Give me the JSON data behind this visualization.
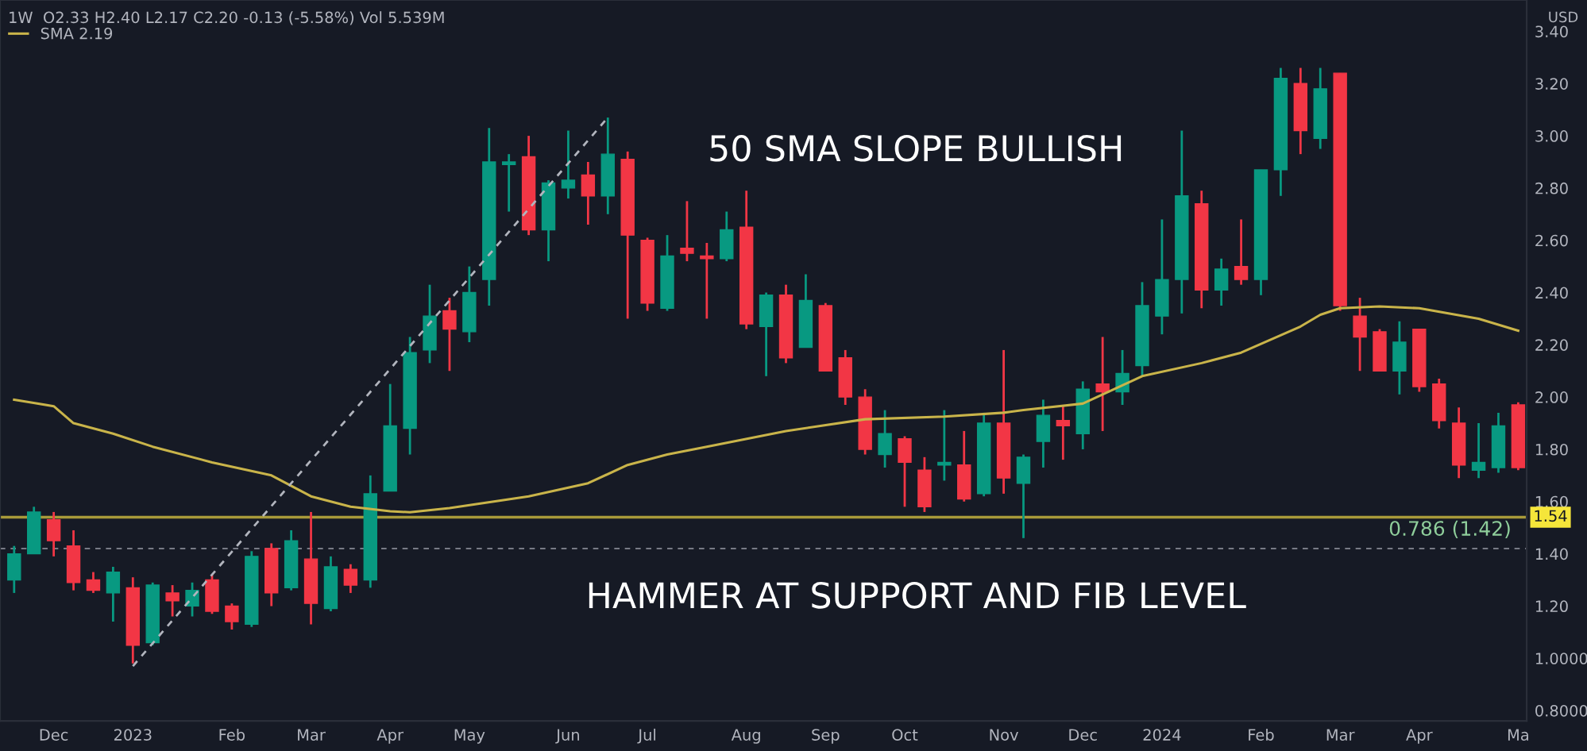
{
  "chart_data": {
    "type": "candlestick",
    "title": "1W  O2.33 H2.40 L2.17 C2.20 -0.13 (-5.58%) Vol 5.539M",
    "ylabel": "USD",
    "x": [
      "2022-11-21",
      "2022-11-28",
      "2022-12-05",
      "2022-12-12",
      "2022-12-19",
      "2022-12-26",
      "2023-01-02",
      "2023-01-09",
      "2023-01-16",
      "2023-01-23",
      "2023-01-30",
      "2023-02-06",
      "2023-02-13",
      "2023-02-20",
      "2023-02-27",
      "2023-03-06",
      "2023-03-13",
      "2023-03-20",
      "2023-03-27",
      "2023-04-03",
      "2023-04-10",
      "2023-04-17",
      "2023-04-24",
      "2023-05-01",
      "2023-05-08",
      "2023-05-15",
      "2023-05-22",
      "2023-05-29",
      "2023-06-05",
      "2023-06-12",
      "2023-06-19",
      "2023-06-26",
      "2023-07-03",
      "2023-07-10",
      "2023-07-17",
      "2023-07-24",
      "2023-07-31",
      "2023-08-07",
      "2023-08-14",
      "2023-08-21",
      "2023-08-28",
      "2023-09-04",
      "2023-09-11",
      "2023-09-18",
      "2023-09-25",
      "2023-10-02",
      "2023-10-09",
      "2023-10-16",
      "2023-10-23",
      "2023-10-30",
      "2023-11-06",
      "2023-11-13",
      "2023-11-20",
      "2023-11-27",
      "2023-12-04",
      "2023-12-11",
      "2023-12-18",
      "2023-12-25",
      "2024-01-01",
      "2024-01-08",
      "2024-01-15",
      "2024-01-22",
      "2024-01-29",
      "2024-02-05",
      "2024-02-12",
      "2024-02-19",
      "2024-02-26",
      "2024-03-04",
      "2024-03-11",
      "2024-03-18",
      "2024-03-25",
      "2024-04-01",
      "2024-04-08",
      "2024-04-15",
      "2024-04-22",
      "2024-04-29",
      "2024-05-06"
    ],
    "ohlc": [
      [
        1.3,
        1.43,
        1.25,
        1.4
      ],
      [
        1.4,
        1.58,
        1.4,
        1.56
      ],
      [
        1.53,
        1.56,
        1.39,
        1.45
      ],
      [
        1.43,
        1.49,
        1.26,
        1.29
      ],
      [
        1.3,
        1.33,
        1.25,
        1.26
      ],
      [
        1.25,
        1.35,
        1.14,
        1.33
      ],
      [
        1.27,
        1.31,
        0.98,
        1.05
      ],
      [
        1.06,
        1.29,
        1.05,
        1.28
      ],
      [
        1.25,
        1.28,
        1.16,
        1.22
      ],
      [
        1.2,
        1.29,
        1.16,
        1.26
      ],
      [
        1.3,
        1.32,
        1.17,
        1.18
      ],
      [
        1.2,
        1.21,
        1.11,
        1.14
      ],
      [
        1.13,
        1.41,
        1.12,
        1.39
      ],
      [
        1.42,
        1.44,
        1.2,
        1.25
      ],
      [
        1.27,
        1.49,
        1.26,
        1.45
      ],
      [
        1.38,
        1.56,
        1.13,
        1.21
      ],
      [
        1.19,
        1.39,
        1.18,
        1.35
      ],
      [
        1.34,
        1.36,
        1.25,
        1.28
      ],
      [
        1.3,
        1.7,
        1.27,
        1.63
      ],
      [
        1.64,
        2.05,
        1.64,
        1.89
      ],
      [
        1.88,
        2.23,
        1.78,
        2.17
      ],
      [
        2.18,
        2.43,
        2.13,
        2.31
      ],
      [
        2.33,
        2.38,
        2.1,
        2.26
      ],
      [
        2.25,
        2.5,
        2.21,
        2.4
      ],
      [
        2.45,
        3.03,
        2.35,
        2.9
      ],
      [
        2.89,
        2.93,
        2.71,
        2.9
      ],
      [
        2.92,
        3.0,
        2.62,
        2.64
      ],
      [
        2.64,
        2.83,
        2.52,
        2.82
      ],
      [
        2.8,
        3.02,
        2.76,
        2.83
      ],
      [
        2.85,
        2.9,
        2.66,
        2.77
      ],
      [
        2.77,
        3.07,
        2.7,
        2.93
      ],
      [
        2.91,
        2.94,
        2.3,
        2.62
      ],
      [
        2.6,
        2.61,
        2.33,
        2.36
      ],
      [
        2.34,
        2.62,
        2.33,
        2.54
      ],
      [
        2.57,
        2.75,
        2.52,
        2.55
      ],
      [
        2.54,
        2.59,
        2.3,
        2.53
      ],
      [
        2.53,
        2.71,
        2.52,
        2.64
      ],
      [
        2.65,
        2.79,
        2.26,
        2.28
      ],
      [
        2.27,
        2.4,
        2.08,
        2.39
      ],
      [
        2.39,
        2.43,
        2.13,
        2.15
      ],
      [
        2.19,
        2.47,
        2.19,
        2.37
      ],
      [
        2.35,
        2.36,
        2.1,
        2.1
      ],
      [
        2.15,
        2.18,
        1.97,
        2.0
      ],
      [
        2.0,
        2.03,
        1.78,
        1.8
      ],
      [
        1.78,
        1.95,
        1.73,
        1.86
      ],
      [
        1.84,
        1.85,
        1.58,
        1.75
      ],
      [
        1.72,
        1.77,
        1.56,
        1.58
      ],
      [
        1.74,
        1.95,
        1.68,
        1.75
      ],
      [
        1.74,
        1.87,
        1.6,
        1.61
      ],
      [
        1.63,
        1.94,
        1.62,
        1.9
      ],
      [
        1.9,
        2.18,
        1.63,
        1.69
      ],
      [
        1.67,
        1.78,
        1.46,
        1.77
      ],
      [
        1.83,
        1.99,
        1.73,
        1.93
      ],
      [
        1.91,
        1.97,
        1.76,
        1.89
      ],
      [
        1.86,
        2.06,
        1.8,
        2.03
      ],
      [
        2.05,
        2.23,
        1.87,
        2.02
      ],
      [
        2.02,
        2.18,
        1.97,
        2.09
      ],
      [
        2.12,
        2.44,
        2.08,
        2.35
      ],
      [
        2.31,
        2.68,
        2.24,
        2.45
      ],
      [
        2.45,
        3.02,
        2.32,
        2.77
      ],
      [
        2.74,
        2.79,
        2.34,
        2.41
      ],
      [
        2.41,
        2.53,
        2.35,
        2.49
      ],
      [
        2.5,
        2.68,
        2.43,
        2.45
      ],
      [
        2.45,
        2.87,
        2.39,
        2.87
      ],
      [
        2.87,
        3.26,
        2.77,
        3.22
      ],
      [
        3.2,
        3.26,
        2.93,
        3.02
      ],
      [
        2.99,
        3.26,
        2.95,
        3.18
      ],
      [
        3.24,
        3.24,
        2.33,
        2.35
      ],
      [
        2.31,
        2.38,
        2.1,
        2.23
      ],
      [
        2.25,
        2.26,
        2.1,
        2.1
      ],
      [
        2.1,
        2.29,
        2.01,
        2.21
      ],
      [
        2.26,
        2.26,
        2.02,
        2.04
      ],
      [
        2.05,
        2.07,
        1.88,
        1.91
      ],
      [
        1.9,
        1.96,
        1.69,
        1.74
      ],
      [
        1.72,
        1.9,
        1.69,
        1.75
      ],
      [
        1.73,
        1.94,
        1.71,
        1.89
      ],
      [
        1.97,
        1.98,
        1.72,
        1.73
      ]
    ],
    "colors": [
      "#089981",
      "#089981",
      "#f23645",
      "#f23645",
      "#f23645",
      "#089981",
      "#f23645",
      "#089981",
      "#f23645",
      "#089981",
      "#f23645",
      "#f23645",
      "#089981",
      "#f23645",
      "#089981",
      "#f23645",
      "#089981",
      "#f23645",
      "#089981",
      "#089981",
      "#089981",
      "#089981",
      "#f23645",
      "#089981",
      "#089981",
      "#089981",
      "#f23645",
      "#089981",
      "#089981",
      "#f23645",
      "#089981",
      "#f23645",
      "#f23645",
      "#089981",
      "#f23645",
      "#f23645",
      "#089981",
      "#f23645",
      "#089981",
      "#f23645",
      "#089981",
      "#f23645",
      "#f23645",
      "#f23645",
      "#089981",
      "#f23645",
      "#f23645",
      "#089981",
      "#f23645",
      "#089981",
      "#f23645",
      "#089981",
      "#089981",
      "#f23645",
      "#089981",
      "#f23645",
      "#089981",
      "#089981",
      "#089981",
      "#089981",
      "#f23645",
      "#089981",
      "#f23645",
      "#089981",
      "#089981",
      "#f23645",
      "#089981",
      "#f23645",
      "#f23645",
      "#f23645",
      "#089981",
      "#f23645",
      "#f23645",
      "#f23645",
      "#089981",
      "#089981",
      "#f23645"
    ],
    "series": [
      {
        "type": "line",
        "name": "SMA 2.19",
        "color": "#c9b44a",
        "x": [
          "2022-11-21",
          "2022-12-05",
          "2022-12-12",
          "2022-12-26",
          "2023-01-09",
          "2023-01-30",
          "2023-02-20",
          "2023-03-06",
          "2023-03-20",
          "2023-04-03",
          "2023-04-10",
          "2023-04-24",
          "2023-05-22",
          "2023-06-12",
          "2023-06-26",
          "2023-07-10",
          "2023-07-24",
          "2023-08-21",
          "2023-09-18",
          "2023-10-16",
          "2023-11-06",
          "2023-11-13",
          "2023-12-04",
          "2023-12-25",
          "2024-01-15",
          "2024-01-29",
          "2024-02-19",
          "2024-02-26",
          "2024-03-04",
          "2024-03-18",
          "2024-04-01",
          "2024-04-22",
          "2024-05-06"
        ],
        "values": [
          1.99,
          1.965,
          1.9,
          1.86,
          1.81,
          1.75,
          1.7,
          1.62,
          1.58,
          1.563,
          1.559,
          1.575,
          1.62,
          1.67,
          1.74,
          1.78,
          1.81,
          1.87,
          1.915,
          1.925,
          1.94,
          1.95,
          1.975,
          2.08,
          2.13,
          2.17,
          2.27,
          2.315,
          2.34,
          2.347,
          2.34,
          2.3,
          2.254
        ]
      },
      {
        "type": "line",
        "color": "#b2b5be",
        "line_style": "dashed",
        "x": [
          "2023-01-02",
          "2023-06-19"
        ],
        "values": [
          0.97,
          3.07
        ]
      }
    ],
    "ref_lines": [
      {
        "axis": "y",
        "value": 1.54,
        "label": "1.54",
        "color": "#a89a3a",
        "line_style": "solid"
      },
      {
        "axis": "y",
        "value": 1.42,
        "label": "0.786 (1.42)",
        "color": "#787b86",
        "line_style": "dashed"
      }
    ],
    "annotations": [
      "50 SMA SLOPE BULLISH",
      "HAMMER AT SUPPORT AND FIB LEVEL"
    ],
    "xlim": [
      "2022-11-16",
      "2024-05-09"
    ],
    "xticks": [
      {
        "value": "2022-12-05",
        "label": "Dec"
      },
      {
        "value": "2023-01-02",
        "label": "2023"
      },
      {
        "value": "2023-02-06",
        "label": "Feb"
      },
      {
        "value": "2023-03-06",
        "label": "Mar"
      },
      {
        "value": "2023-04-03",
        "label": "Apr"
      },
      {
        "value": "2023-05-01",
        "label": "May"
      },
      {
        "value": "2023-06-05",
        "label": "Jun"
      },
      {
        "value": "2023-07-03",
        "label": "Jul"
      },
      {
        "value": "2023-08-07",
        "label": "Aug"
      },
      {
        "value": "2023-09-04",
        "label": "Sep"
      },
      {
        "value": "2023-10-02",
        "label": "Oct"
      },
      {
        "value": "2023-11-06",
        "label": "Nov"
      },
      {
        "value": "2023-12-04",
        "label": "Dec"
      },
      {
        "value": "2024-01-01",
        "label": "2024"
      },
      {
        "value": "2024-02-05",
        "label": "Feb"
      },
      {
        "value": "2024-03-04",
        "label": "Mar"
      },
      {
        "value": "2024-04-01",
        "label": "Apr"
      },
      {
        "value": "2024-05-06",
        "label": "Ma"
      }
    ],
    "ylim": [
      0.76,
      3.52
    ],
    "yticks": [
      {
        "value": 3.4,
        "label": "3.40"
      },
      {
        "value": 3.2,
        "label": "3.20"
      },
      {
        "value": 3.0,
        "label": "3.00"
      },
      {
        "value": 2.8,
        "label": "2.80"
      },
      {
        "value": 2.6,
        "label": "2.60"
      },
      {
        "value": 2.4,
        "label": "2.40"
      },
      {
        "value": 2.2,
        "label": "2.20"
      },
      {
        "value": 2.0,
        "label": "2.00"
      },
      {
        "value": 1.8,
        "label": "1.80"
      },
      {
        "value": 1.6,
        "label": "1.60"
      },
      {
        "value": 1.4,
        "label": "1.40"
      },
      {
        "value": 1.2,
        "label": "1.20"
      },
      {
        "value": 1.0,
        "label": "1.0000"
      },
      {
        "value": 0.8,
        "label": "0.8000"
      }
    ],
    "grid": false,
    "legend": "top left"
  }
}
